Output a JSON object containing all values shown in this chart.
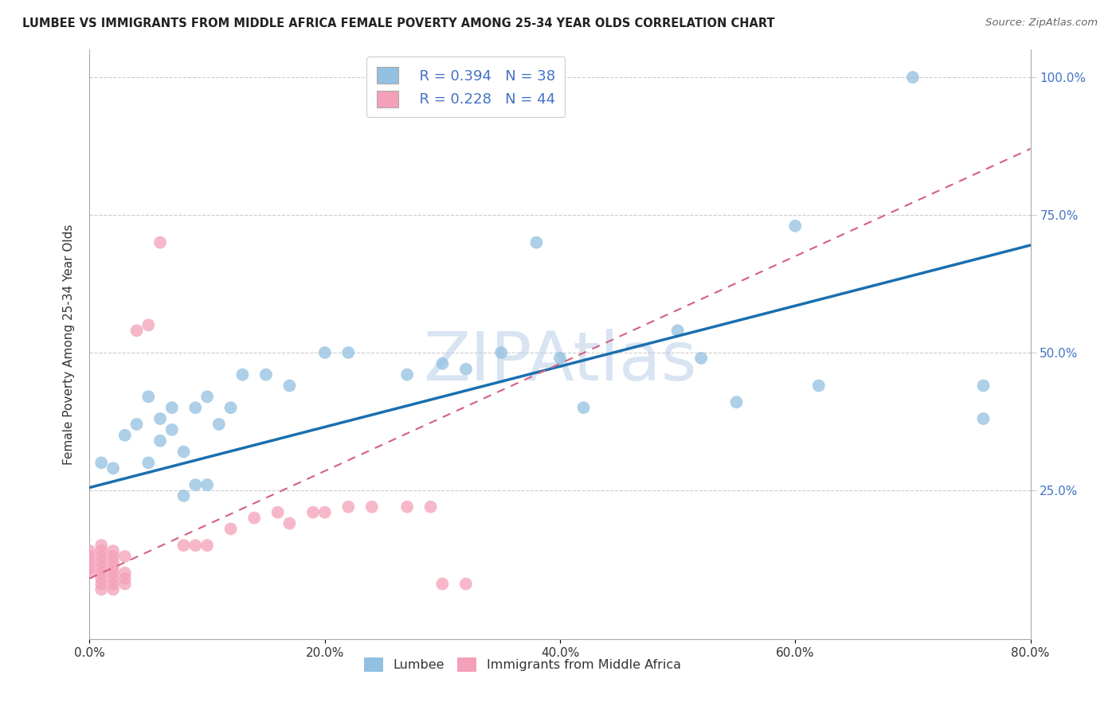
{
  "title": "LUMBEE VS IMMIGRANTS FROM MIDDLE AFRICA FEMALE POVERTY AMONG 25-34 YEAR OLDS CORRELATION CHART",
  "source": "Source: ZipAtlas.com",
  "ylabel_label": "Female Poverty Among 25-34 Year Olds",
  "watermark": "ZIPAtlas",
  "lumbee_color": "#92C0E0",
  "immigrants_color": "#F4A0B8",
  "lumbee_line_color": "#1a6faf",
  "immigrants_line_color": "#d46080",
  "lumbee_scatter": {
    "x": [
      0.01,
      0.02,
      0.03,
      0.04,
      0.05,
      0.05,
      0.06,
      0.06,
      0.07,
      0.07,
      0.08,
      0.08,
      0.09,
      0.09,
      0.1,
      0.1,
      0.11,
      0.12,
      0.13,
      0.15,
      0.17,
      0.2,
      0.22,
      0.27,
      0.3,
      0.32,
      0.35,
      0.38,
      0.4,
      0.42,
      0.5,
      0.52,
      0.55,
      0.6,
      0.62,
      0.7,
      0.76,
      0.76
    ],
    "y": [
      0.3,
      0.29,
      0.35,
      0.37,
      0.3,
      0.42,
      0.34,
      0.38,
      0.36,
      0.4,
      0.24,
      0.32,
      0.26,
      0.4,
      0.26,
      0.42,
      0.37,
      0.4,
      0.46,
      0.46,
      0.44,
      0.5,
      0.5,
      0.46,
      0.48,
      0.47,
      0.5,
      0.7,
      0.49,
      0.4,
      0.54,
      0.49,
      0.41,
      0.73,
      0.44,
      1.0,
      0.44,
      0.38
    ]
  },
  "immigrants_scatter": {
    "x": [
      0.0,
      0.0,
      0.0,
      0.0,
      0.0,
      0.01,
      0.01,
      0.01,
      0.01,
      0.01,
      0.01,
      0.01,
      0.01,
      0.01,
      0.02,
      0.02,
      0.02,
      0.02,
      0.02,
      0.02,
      0.02,
      0.02,
      0.03,
      0.03,
      0.03,
      0.03,
      0.04,
      0.05,
      0.06,
      0.08,
      0.09,
      0.1,
      0.12,
      0.14,
      0.16,
      0.17,
      0.19,
      0.2,
      0.22,
      0.24,
      0.27,
      0.29,
      0.3,
      0.32
    ],
    "y": [
      0.1,
      0.11,
      0.12,
      0.13,
      0.14,
      0.07,
      0.08,
      0.09,
      0.1,
      0.11,
      0.12,
      0.13,
      0.14,
      0.15,
      0.07,
      0.08,
      0.09,
      0.1,
      0.11,
      0.12,
      0.13,
      0.14,
      0.08,
      0.09,
      0.1,
      0.13,
      0.54,
      0.55,
      0.7,
      0.15,
      0.15,
      0.15,
      0.18,
      0.2,
      0.21,
      0.19,
      0.21,
      0.21,
      0.22,
      0.22,
      0.22,
      0.22,
      0.08,
      0.08
    ]
  },
  "xlim": [
    0.0,
    0.8
  ],
  "ylim": [
    -0.02,
    1.05
  ],
  "yticks": [
    0.25,
    0.5,
    0.75,
    1.0
  ],
  "xtick_count": 5,
  "lumbee_line": {
    "x0": 0.0,
    "y0": 0.255,
    "x1": 0.8,
    "y1": 0.695
  },
  "immigrants_line": {
    "x0": 0.0,
    "y0": 0.09,
    "x1": 0.8,
    "y1": 0.87
  }
}
